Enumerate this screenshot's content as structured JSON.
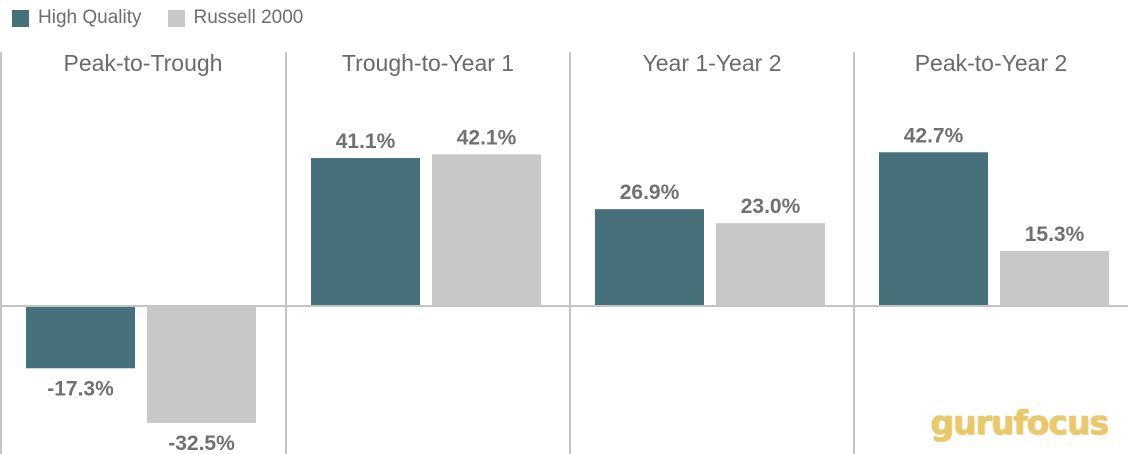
{
  "legend": [
    {
      "name": "High Quality",
      "color": "#47717a"
    },
    {
      "name": "Russell 2000",
      "color": "#c8c8c8"
    }
  ],
  "watermark": "gurufocus",
  "chart_data": {
    "type": "bar",
    "categories": [
      "Peak-to-Trough",
      "Trough-to-Year 1",
      "Year 1-Year 2",
      "Peak-to-Year 2"
    ],
    "series": [
      {
        "name": "High Quality",
        "values": [
          -17.3,
          41.1,
          26.9,
          42.7
        ],
        "labels": [
          "-17.3%",
          "41.1%",
          "26.9%",
          "42.7%"
        ],
        "color": "#47717a"
      },
      {
        "name": "Russell 2000",
        "values": [
          -32.5,
          42.1,
          23.0,
          15.3
        ],
        "labels": [
          "-32.5%",
          "42.1%",
          "23.0%",
          "15.3%"
        ],
        "color": "#c8c8c8"
      }
    ],
    "ylim": [
      -42,
      45
    ],
    "grid": false,
    "legend_position": "top-left"
  }
}
